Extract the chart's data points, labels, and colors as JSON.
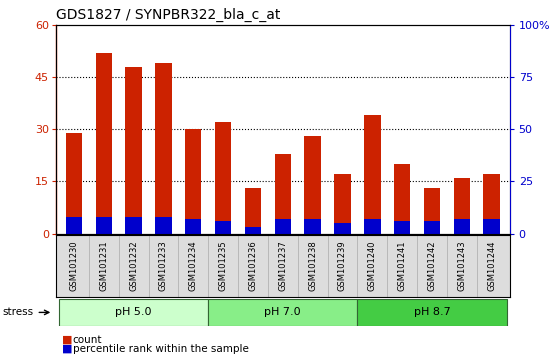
{
  "title": "GDS1827 / SYNPBR322_bla_c_at",
  "samples": [
    "GSM101230",
    "GSM101231",
    "GSM101232",
    "GSM101233",
    "GSM101234",
    "GSM101235",
    "GSM101236",
    "GSM101237",
    "GSM101238",
    "GSM101239",
    "GSM101240",
    "GSM101241",
    "GSM101242",
    "GSM101243",
    "GSM101244"
  ],
  "count_values": [
    29,
    52,
    48,
    49,
    30,
    32,
    13,
    23,
    28,
    17,
    34,
    20,
    13,
    16,
    17
  ],
  "percentile_values": [
    8,
    8,
    8,
    8,
    7,
    6,
    3,
    7,
    7,
    5,
    7,
    6,
    6,
    7,
    7
  ],
  "groups": [
    {
      "label": "pH 5.0",
      "start": 0,
      "end": 4,
      "color": "#ccffcc"
    },
    {
      "label": "pH 7.0",
      "start": 5,
      "end": 9,
      "color": "#88ee88"
    },
    {
      "label": "pH 8.7",
      "start": 10,
      "end": 14,
      "color": "#44cc44"
    }
  ],
  "stress_label": "stress",
  "ylim_left": [
    0,
    60
  ],
  "ylim_right": [
    0,
    100
  ],
  "yticks_left": [
    0,
    15,
    30,
    45,
    60
  ],
  "ytick_labels_right": [
    "0",
    "25",
    "50",
    "75",
    "100%"
  ],
  "bar_color_count": "#cc2200",
  "bar_color_pct": "#0000cc",
  "bar_width": 0.55,
  "background_color": "#ffffff",
  "title_fontsize": 10,
  "tick_fontsize": 6.5
}
